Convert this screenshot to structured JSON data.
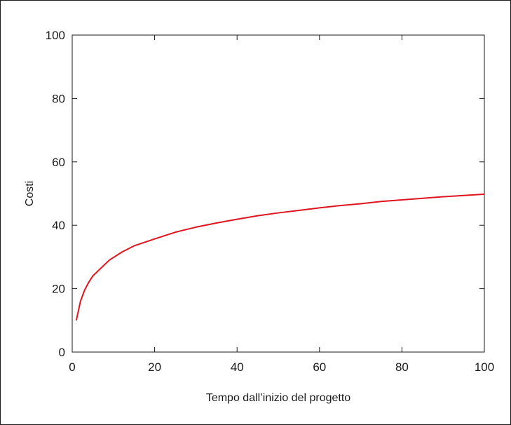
{
  "chart_data": {
    "type": "line",
    "title": "",
    "xlabel": "Tempo dall’inizio del progetto",
    "ylabel": "Costi",
    "xlim": [
      0,
      100
    ],
    "ylim": [
      0,
      100
    ],
    "x_ticks": [
      0,
      20,
      40,
      60,
      80,
      100
    ],
    "y_ticks": [
      0,
      20,
      40,
      60,
      80,
      100
    ],
    "grid": false,
    "legend": "none",
    "series": [
      {
        "color": "#e0141e",
        "x": [
          1,
          2,
          3,
          4,
          5,
          7,
          9,
          12,
          15,
          20,
          25,
          30,
          35,
          40,
          45,
          50,
          55,
          60,
          65,
          70,
          75,
          80,
          85,
          90,
          95,
          100
        ],
        "y": [
          10,
          16,
          19.5,
          22,
          24,
          26.5,
          29,
          31.5,
          33.5,
          35.7,
          37.8,
          39.4,
          40.7,
          41.9,
          43,
          43.9,
          44.7,
          45.5,
          46.2,
          46.8,
          47.5,
          48,
          48.5,
          49,
          49.4,
          49.8
        ]
      }
    ]
  }
}
